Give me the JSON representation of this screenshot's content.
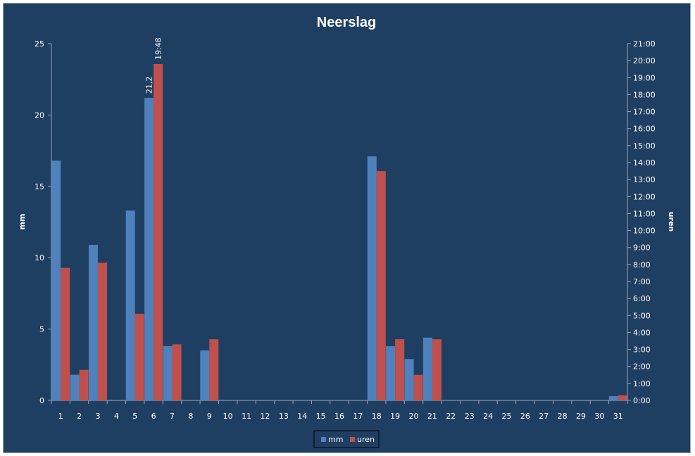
{
  "chart_data": {
    "type": "bar",
    "title": "Neerslag",
    "ylabel": "mm",
    "y2label": "uren",
    "ylim": [
      0,
      25
    ],
    "y_ticks": [
      "0",
      "5",
      "10",
      "15",
      "20",
      "25"
    ],
    "y2lim_hours": [
      0,
      21
    ],
    "y2_ticks": [
      "0:00",
      "1:00",
      "2:00",
      "3:00",
      "4:00",
      "5:00",
      "6:00",
      "7:00",
      "8:00",
      "9:00",
      "10:00",
      "11:00",
      "12:00",
      "13:00",
      "14:00",
      "15:00",
      "16:00",
      "17:00",
      "18:00",
      "19:00",
      "20:00",
      "21:00"
    ],
    "categories": [
      "1",
      "2",
      "3",
      "4",
      "5",
      "6",
      "7",
      "8",
      "9",
      "10",
      "11",
      "12",
      "13",
      "14",
      "15",
      "16",
      "17",
      "18",
      "19",
      "20",
      "21",
      "22",
      "23",
      "24",
      "25",
      "26",
      "27",
      "28",
      "29",
      "30",
      "31"
    ],
    "legend_position": "bottom",
    "grid": false,
    "series": [
      {
        "name": "mm",
        "axis": "left",
        "color": "#4f81bd",
        "values": [
          16.8,
          1.8,
          10.9,
          0,
          13.3,
          21.2,
          3.8,
          0,
          3.5,
          0,
          0,
          0,
          0,
          0,
          0,
          0,
          0,
          17.1,
          3.8,
          2.9,
          4.4,
          0,
          0,
          0,
          0,
          0,
          0,
          0,
          0,
          0,
          0.3
        ]
      },
      {
        "name": "uren",
        "axis": "right",
        "color": "#c0504d",
        "values": [
          7.8,
          1.8,
          8.1,
          0,
          5.1,
          19.8,
          3.3,
          0,
          3.6,
          0,
          0,
          0,
          0,
          0,
          0,
          0,
          0,
          13.5,
          3.6,
          1.5,
          3.6,
          0,
          0,
          0,
          0,
          0,
          0,
          0,
          0,
          0,
          0.3
        ]
      }
    ],
    "annotations": [
      {
        "series": "mm",
        "category": "6",
        "text": "21,2"
      },
      {
        "series": "uren",
        "category": "6",
        "text": "19:48"
      }
    ]
  }
}
